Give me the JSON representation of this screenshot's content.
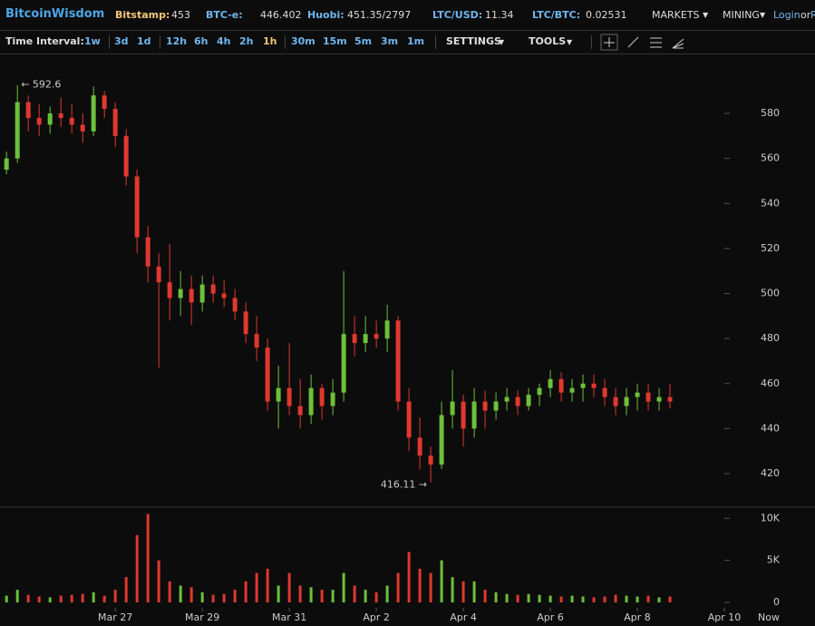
{
  "header": {
    "brand": "BitcoinWisdom",
    "tickers": [
      {
        "label": "Bitstamp:",
        "value": "453"
      },
      {
        "label": "BTC-e:",
        "value": "446.402"
      },
      {
        "label": "Huobi:",
        "value": "451.35/2797"
      },
      {
        "label": "LTC/USD:",
        "value": "11.34"
      },
      {
        "label": "LTC/BTC:",
        "value": "0.02531"
      }
    ],
    "menus": [
      "MARKETS",
      "MINING"
    ],
    "login": "Login",
    "or": "or",
    "register": "R"
  },
  "toolbar": {
    "label": "Time Interval:",
    "intervals": [
      "1w",
      "3d",
      "1d",
      "12h",
      "6h",
      "4h",
      "2h",
      "1h",
      "30m",
      "15m",
      "5m",
      "3m",
      "1m"
    ],
    "active_index": 7,
    "menus": [
      "SETTINGS",
      "TOOLS"
    ]
  },
  "chart_data": {
    "type": "candlestick",
    "x": [
      83.5,
      83.75,
      84,
      84.25,
      84.5,
      84.75,
      85,
      85.25,
      85.5,
      85.75,
      86,
      86.25,
      86.5,
      86.75,
      87,
      87.25,
      87.5,
      87.75,
      88,
      88.25,
      88.5,
      88.75,
      89,
      89.25,
      89.5,
      89.75,
      90,
      90.25,
      90.5,
      90.75,
      91,
      91.25,
      91.5,
      91.75,
      92,
      92.25,
      92.5,
      92.75,
      93,
      93.25,
      93.5,
      93.75,
      94,
      94.25,
      94.5,
      94.75,
      95,
      95.25,
      95.5,
      95.75,
      96,
      96.25,
      96.5,
      96.75,
      97,
      97.25,
      97.5,
      97.75,
      98,
      98.25,
      98.5,
      98.75
    ],
    "open": [
      555,
      560,
      585,
      578,
      575,
      580,
      578,
      575,
      572,
      588,
      582,
      570,
      552,
      525,
      512,
      505,
      498,
      502,
      496,
      504,
      500,
      498,
      492,
      482,
      476,
      452,
      458,
      450,
      446,
      458,
      450,
      456,
      482,
      478,
      482,
      480,
      488,
      452,
      436,
      428,
      424,
      446,
      452,
      440,
      452,
      448,
      452,
      454,
      450,
      455,
      458,
      462,
      456,
      458,
      460,
      458,
      454,
      450,
      454,
      456,
      452,
      454
    ],
    "high": [
      563,
      592.6,
      588,
      584,
      583,
      587,
      584,
      580,
      592,
      590,
      585,
      573,
      555,
      530,
      518,
      522,
      510,
      508,
      508,
      508,
      506,
      502,
      496,
      490,
      480,
      468,
      478,
      462,
      464,
      460,
      462,
      510,
      490,
      490,
      488,
      495,
      490,
      458,
      445,
      432,
      452,
      466,
      455,
      458,
      457,
      456,
      458,
      457,
      458,
      460,
      466,
      465,
      462,
      464,
      464,
      462,
      458,
      458,
      460,
      460,
      458,
      460
    ],
    "low": [
      553,
      558,
      572,
      570,
      571,
      574,
      571,
      567,
      570,
      578,
      565,
      548,
      518,
      505,
      467,
      488,
      490,
      486,
      492,
      496,
      494,
      488,
      478,
      470,
      448,
      440,
      446,
      440,
      442,
      444,
      446,
      452,
      472,
      474,
      476,
      474,
      448,
      430,
      422,
      416.11,
      422,
      440,
      432,
      436,
      440,
      444,
      448,
      446,
      448,
      450,
      454,
      452,
      452,
      452,
      454,
      450,
      446,
      446,
      448,
      448,
      448,
      449
    ],
    "close": [
      560,
      585,
      578,
      575,
      580,
      578,
      575,
      572,
      588,
      582,
      570,
      552,
      525,
      512,
      505,
      498,
      502,
      496,
      504,
      500,
      498,
      492,
      482,
      476,
      452,
      458,
      450,
      446,
      458,
      450,
      456,
      482,
      478,
      482,
      480,
      488,
      452,
      436,
      428,
      424,
      446,
      452,
      440,
      452,
      448,
      452,
      454,
      450,
      455,
      458,
      462,
      456,
      458,
      460,
      458,
      454,
      450,
      454,
      456,
      452,
      454,
      452
    ],
    "volume": [
      800,
      1500,
      900,
      700,
      600,
      800,
      900,
      1000,
      1200,
      800,
      1500,
      3000,
      8000,
      10500,
      5000,
      2500,
      2000,
      1800,
      1200,
      900,
      1000,
      1500,
      2500,
      3500,
      4000,
      2000,
      3500,
      2000,
      1800,
      1500,
      1500,
      3500,
      2000,
      1500,
      1200,
      2000,
      3500,
      6000,
      4000,
      3500,
      5000,
      3000,
      2500,
      2500,
      1500,
      1200,
      1000,
      900,
      1000,
      900,
      800,
      700,
      800,
      700,
      600,
      700,
      900,
      800,
      700,
      800,
      600,
      700
    ],
    "up_color": "#6cc03a",
    "down_color": "#e0382f",
    "xlim": [
      83.35,
      100.02
    ],
    "xticks": [
      {
        "value": 86,
        "label": "Mar 27"
      },
      {
        "value": 88,
        "label": "Mar 29"
      },
      {
        "value": 90,
        "label": "Mar 31"
      },
      {
        "value": 92,
        "label": "Apr 2"
      },
      {
        "value": 94,
        "label": "Apr 4"
      },
      {
        "value": 96,
        "label": "Apr 6"
      },
      {
        "value": 98,
        "label": "Apr 8"
      },
      {
        "value": 100,
        "label": "Apr 10"
      }
    ],
    "now_label": "Now",
    "ylim": [
      405.5,
      606.2
    ],
    "yticks": [
      420,
      440,
      460,
      480,
      500,
      520,
      540,
      560,
      580
    ],
    "volume_ylim": [
      0,
      11000
    ],
    "volume_yticks": [
      0,
      {
        "value": 5000,
        "label": "5K"
      },
      {
        "value": 10000,
        "label": "10K"
      }
    ],
    "annotations": [
      "← 592.6",
      "416.11 →"
    ],
    "grid": false
  }
}
